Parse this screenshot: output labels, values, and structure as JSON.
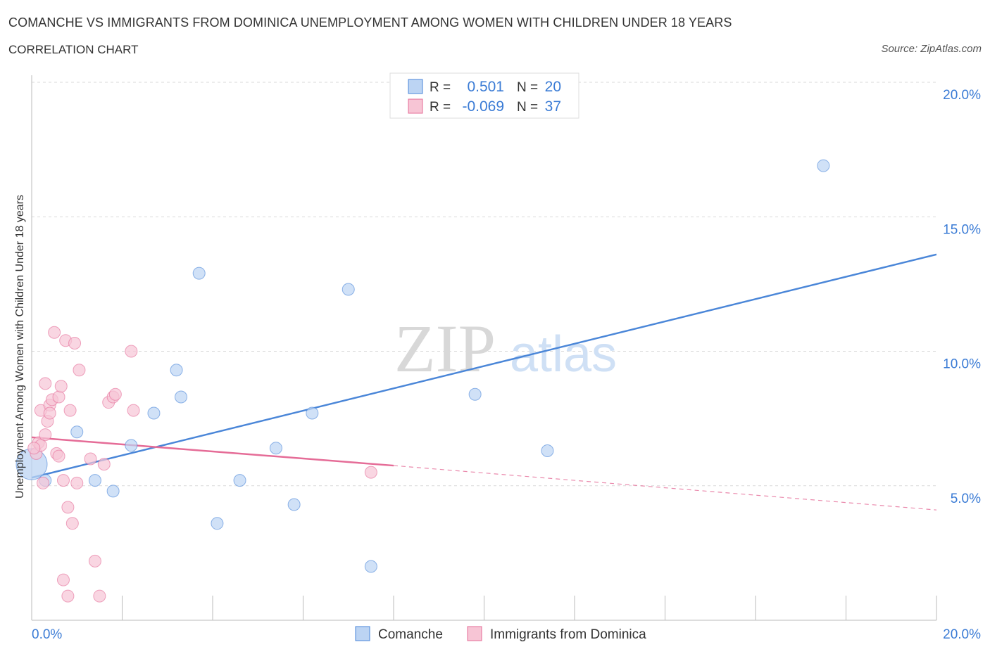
{
  "header": {
    "title": "COMANCHE VS IMMIGRANTS FROM DOMINICA UNEMPLOYMENT AMONG WOMEN WITH CHILDREN UNDER 18 YEARS",
    "subtitle": "CORRELATION CHART",
    "source": "Source: ZipAtlas.com"
  },
  "watermark": {
    "zip": "ZIP",
    "atlas": "atlas"
  },
  "stats_legend": {
    "rows": [
      {
        "r_label": "R =",
        "r_value": "0.501",
        "n_label": "N =",
        "n_value": "20",
        "color": "#4a86d8",
        "fill": "#bcd4f3"
      },
      {
        "r_label": "R =",
        "r_value": "-0.069",
        "n_label": "N =",
        "n_value": "37",
        "color": "#e56c97",
        "fill": "#f7c5d5"
      }
    ]
  },
  "chart_data": {
    "type": "scatter",
    "title": "COMANCHE VS IMMIGRANTS FROM DOMINICA UNEMPLOYMENT AMONG WOMEN WITH CHILDREN UNDER 18 YEARS",
    "xlabel": "",
    "ylabel": "Unemployment Among Women with Children Under 18 years",
    "xlim": [
      0,
      20
    ],
    "ylim": [
      0,
      20
    ],
    "x_tick_labels": [
      "0.0%",
      "20.0%"
    ],
    "y_tick_labels": [
      "5.0%",
      "10.0%",
      "15.0%",
      "20.0%"
    ],
    "y_ticks": [
      5,
      10,
      15,
      20
    ],
    "grid": true,
    "legend_position": "bottom",
    "series": [
      {
        "name": "Comanche",
        "color": "#4a86d8",
        "fill": "#bcd4f3",
        "points": [
          {
            "x": 0.0,
            "y": 5.8
          },
          {
            "x": 1.0,
            "y": 7.0
          },
          {
            "x": 1.4,
            "y": 5.2
          },
          {
            "x": 1.8,
            "y": 4.8
          },
          {
            "x": 2.2,
            "y": 6.5
          },
          {
            "x": 2.7,
            "y": 7.7
          },
          {
            "x": 3.2,
            "y": 9.3
          },
          {
            "x": 3.3,
            "y": 8.3
          },
          {
            "x": 3.7,
            "y": 12.9
          },
          {
            "x": 4.1,
            "y": 3.6
          },
          {
            "x": 4.6,
            "y": 5.2
          },
          {
            "x": 5.4,
            "y": 6.4
          },
          {
            "x": 5.8,
            "y": 4.3
          },
          {
            "x": 6.2,
            "y": 7.7
          },
          {
            "x": 7.0,
            "y": 12.3
          },
          {
            "x": 7.5,
            "y": 2.0
          },
          {
            "x": 9.8,
            "y": 8.4
          },
          {
            "x": 11.4,
            "y": 6.3
          },
          {
            "x": 17.5,
            "y": 16.9
          },
          {
            "x": 0.3,
            "y": 5.2
          }
        ],
        "trend": {
          "x": [
            0,
            20
          ],
          "y": [
            5.3,
            13.6
          ]
        }
      },
      {
        "name": "Immigrants from Dominica",
        "color": "#e56c97",
        "fill": "#f7c5d5",
        "points": [
          {
            "x": 0.1,
            "y": 6.2
          },
          {
            "x": 0.15,
            "y": 6.6
          },
          {
            "x": 0.2,
            "y": 6.5
          },
          {
            "x": 0.2,
            "y": 7.8
          },
          {
            "x": 0.25,
            "y": 5.1
          },
          {
            "x": 0.3,
            "y": 6.9
          },
          {
            "x": 0.3,
            "y": 8.8
          },
          {
            "x": 0.35,
            "y": 7.4
          },
          {
            "x": 0.4,
            "y": 8.0
          },
          {
            "x": 0.4,
            "y": 7.7
          },
          {
            "x": 0.45,
            "y": 8.2
          },
          {
            "x": 0.5,
            "y": 10.7
          },
          {
            "x": 0.55,
            "y": 6.2
          },
          {
            "x": 0.6,
            "y": 6.1
          },
          {
            "x": 0.6,
            "y": 8.3
          },
          {
            "x": 0.65,
            "y": 8.7
          },
          {
            "x": 0.7,
            "y": 5.2
          },
          {
            "x": 0.7,
            "y": 1.5
          },
          {
            "x": 0.75,
            "y": 10.4
          },
          {
            "x": 0.8,
            "y": 4.2
          },
          {
            "x": 0.8,
            "y": 0.9
          },
          {
            "x": 0.85,
            "y": 7.8
          },
          {
            "x": 0.9,
            "y": 3.6
          },
          {
            "x": 0.95,
            "y": 10.3
          },
          {
            "x": 1.0,
            "y": 5.1
          },
          {
            "x": 1.05,
            "y": 9.3
          },
          {
            "x": 1.3,
            "y": 6.0
          },
          {
            "x": 1.4,
            "y": 2.2
          },
          {
            "x": 1.5,
            "y": 0.9
          },
          {
            "x": 1.6,
            "y": 5.8
          },
          {
            "x": 1.7,
            "y": 8.1
          },
          {
            "x": 1.8,
            "y": 8.3
          },
          {
            "x": 1.85,
            "y": 8.4
          },
          {
            "x": 2.2,
            "y": 10.0
          },
          {
            "x": 2.25,
            "y": 7.8
          },
          {
            "x": 7.5,
            "y": 5.5
          },
          {
            "x": 0.05,
            "y": 6.4
          }
        ],
        "trend": {
          "x": [
            0,
            8.0
          ],
          "y": [
            6.8,
            5.75
          ]
        },
        "trend_dashed": {
          "x": [
            8.0,
            20
          ],
          "y": [
            5.75,
            4.1
          ]
        }
      }
    ]
  }
}
